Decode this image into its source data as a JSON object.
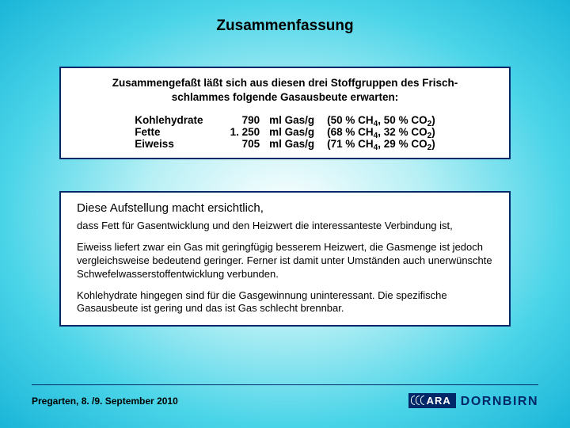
{
  "title": "Zusammenfassung",
  "box1": {
    "intro_line1": "Zusammengefaßt läßt sich aus diesen drei Stoffgruppen des Frisch-",
    "intro_line2": "schlammes folgende Gasausbeute erwarten:",
    "rows": [
      {
        "name": "Kohlehydrate",
        "value": "790",
        "unit": "ml Gas/g",
        "comp_a": "(50 % CH",
        "comp_b": ", 50 % CO",
        "comp_c": ")"
      },
      {
        "name": "Fette",
        "value": "1. 250",
        "unit": "ml Gas/g",
        "comp_a": "(68 % CH",
        "comp_b": ", 32 % CO",
        "comp_c": ")"
      },
      {
        "name": "Eiweiss",
        "value": "705",
        "unit": "ml Gas/g",
        "comp_a": "(71 % CH",
        "comp_b": ", 29 % CO",
        "comp_c": ")"
      }
    ],
    "sub1": "4",
    "sub2": "2"
  },
  "box2": {
    "p1": "Diese Aufstellung macht ersichtlich,",
    "p2": "dass Fett für Gasentwicklung und den Heizwert die interessanteste Verbindung ist,",
    "p3": "Eiweiss liefert zwar ein Gas mit geringfügig besserem Heizwert, die Gasmenge ist jedoch vergleichsweise bedeutend geringer. Ferner ist damit unter Umständen auch unerwünschte Schwefelwasserstoffentwicklung verbunden.",
    "p4": "Kohlehydrate hingegen sind für die Gasgewinnung uninteressant. Die spezifische Gasausbeute ist gering und das ist Gas schlecht brennbar."
  },
  "footer": {
    "text": "Pregarten, 8. /9. September 2010",
    "logo_a": "ARA",
    "logo_b": "DORNBIRN"
  },
  "colors": {
    "border": "#002868",
    "bg_center": "#ffffff",
    "bg_edge": "#1ab5d8"
  }
}
